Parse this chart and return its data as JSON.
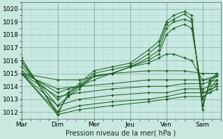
{
  "xlabel": "Pression niveau de la mer( hPa )",
  "bg_color": "#c8e8e0",
  "grid_minor_color": "#b0d8d0",
  "grid_major_color": "#90b8b0",
  "line_color": "#1a5c1a",
  "ylim": [
    1011.5,
    1020.5
  ],
  "xlim": [
    0.0,
    5.5
  ],
  "yticks": [
    1012,
    1013,
    1014,
    1015,
    1016,
    1017,
    1018,
    1019,
    1020
  ],
  "xtick_labels": [
    "Mar",
    "Dim",
    "Mer",
    "Jeu",
    "Ven",
    "Sam"
  ],
  "xtick_pos": [
    0.0,
    1.0,
    2.0,
    3.0,
    4.0,
    5.0
  ],
  "vline_pos": [
    1.0,
    2.0,
    3.0,
    4.0,
    5.0
  ],
  "lines": [
    {
      "x": [
        0.0,
        1.0,
        1.3,
        1.6,
        2.0,
        2.5,
        3.0,
        3.5,
        3.8,
        4.0,
        4.2,
        4.5,
        4.7,
        5.0,
        5.2,
        5.4
      ],
      "y": [
        1016.2,
        1011.8,
        1013.5,
        1014.2,
        1015.2,
        1015.5,
        1015.8,
        1016.8,
        1017.5,
        1019.0,
        1019.5,
        1019.8,
        1019.5,
        1012.2,
        1014.5,
        1015.0
      ]
    },
    {
      "x": [
        0.0,
        1.0,
        1.3,
        1.6,
        2.0,
        2.5,
        3.0,
        3.5,
        3.8,
        4.0,
        4.2,
        4.5,
        4.7,
        5.0,
        5.2,
        5.4
      ],
      "y": [
        1016.0,
        1012.0,
        1013.3,
        1014.0,
        1015.0,
        1015.3,
        1015.6,
        1016.5,
        1017.2,
        1018.8,
        1019.2,
        1019.6,
        1019.2,
        1012.5,
        1014.2,
        1014.8
      ]
    },
    {
      "x": [
        0.0,
        1.0,
        1.3,
        1.6,
        2.0,
        2.5,
        3.0,
        3.5,
        3.8,
        4.0,
        4.2,
        4.5,
        4.7,
        5.0,
        5.2,
        5.4
      ],
      "y": [
        1015.8,
        1012.5,
        1013.2,
        1013.8,
        1014.8,
        1015.0,
        1015.5,
        1016.2,
        1016.8,
        1018.5,
        1019.0,
        1019.2,
        1019.0,
        1013.0,
        1013.8,
        1014.5
      ]
    },
    {
      "x": [
        0.0,
        1.0,
        1.3,
        1.6,
        2.0,
        2.5,
        3.0,
        3.5,
        3.8,
        4.0,
        4.2,
        4.5,
        4.7,
        5.0,
        5.2,
        5.4
      ],
      "y": [
        1015.5,
        1013.0,
        1013.5,
        1014.0,
        1014.8,
        1015.0,
        1015.5,
        1016.0,
        1016.5,
        1018.0,
        1018.5,
        1018.8,
        1018.5,
        1013.5,
        1013.5,
        1014.2
      ]
    },
    {
      "x": [
        0.0,
        1.0,
        1.3,
        1.6,
        2.0,
        2.5,
        3.0,
        3.5,
        3.8,
        4.0,
        4.2,
        4.5,
        4.7,
        5.0,
        5.2,
        5.4
      ],
      "y": [
        1015.2,
        1013.5,
        1013.8,
        1014.0,
        1014.5,
        1015.0,
        1015.5,
        1015.8,
        1016.2,
        1016.5,
        1016.5,
        1016.2,
        1016.0,
        1014.5,
        1014.5,
        1014.8
      ]
    },
    {
      "x": [
        0.0,
        1.0,
        1.6,
        2.5,
        3.5,
        4.0,
        4.5,
        5.0,
        5.4
      ],
      "y": [
        1015.0,
        1014.5,
        1014.5,
        1015.0,
        1015.2,
        1015.2,
        1015.2,
        1015.0,
        1015.0
      ]
    },
    {
      "x": [
        0.0,
        1.0,
        1.6,
        2.5,
        3.5,
        4.0,
        4.5,
        5.0,
        5.4
      ],
      "y": [
        1015.0,
        1013.8,
        1014.0,
        1014.2,
        1014.5,
        1014.5,
        1014.5,
        1014.5,
        1014.8
      ]
    },
    {
      "x": [
        0.0,
        1.0,
        1.6,
        2.5,
        3.5,
        4.0,
        4.5,
        5.0,
        5.4
      ],
      "y": [
        1015.0,
        1013.2,
        1013.5,
        1013.8,
        1014.0,
        1014.0,
        1014.2,
        1014.2,
        1014.5
      ]
    },
    {
      "x": [
        0.0,
        1.0,
        1.6,
        2.5,
        3.5,
        4.0,
        4.5,
        5.0,
        5.4
      ],
      "y": [
        1015.0,
        1012.5,
        1013.0,
        1013.3,
        1013.5,
        1013.5,
        1013.8,
        1013.8,
        1014.2
      ]
    },
    {
      "x": [
        0.0,
        1.0,
        1.6,
        2.5,
        3.5,
        4.0,
        4.5,
        5.0,
        5.4
      ],
      "y": [
        1015.0,
        1012.0,
        1012.5,
        1012.8,
        1013.0,
        1013.2,
        1013.5,
        1013.5,
        1014.0
      ]
    },
    {
      "x": [
        0.0,
        1.0,
        1.6,
        2.5,
        3.5,
        4.0,
        4.5,
        5.0,
        5.4
      ],
      "y": [
        1015.0,
        1011.8,
        1012.2,
        1012.5,
        1012.8,
        1013.0,
        1013.2,
        1013.2,
        1013.8
      ]
    }
  ]
}
